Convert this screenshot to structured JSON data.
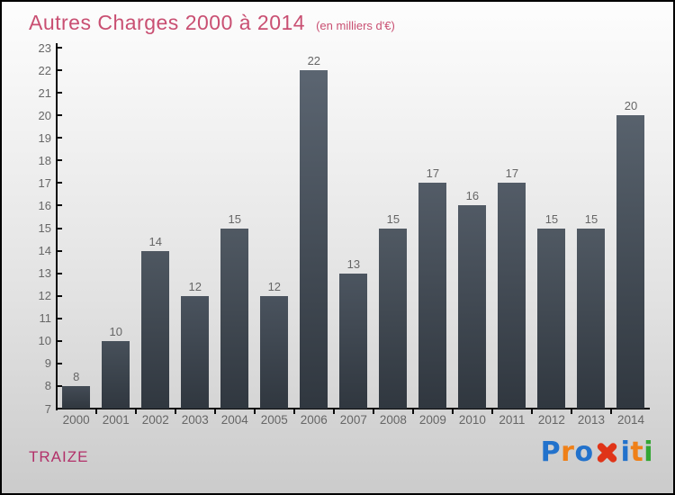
{
  "header": {
    "title": "Autres Charges 2000 à 2014",
    "subtitle": "(en milliers d'€)"
  },
  "chart_data": {
    "type": "bar",
    "title": "Autres Charges 2000 à 2014",
    "subtitle": "(en milliers d'€)",
    "categories": [
      "2000",
      "2001",
      "2002",
      "2003",
      "2004",
      "2005",
      "2006",
      "2007",
      "2008",
      "2009",
      "2010",
      "2011",
      "2012",
      "2013",
      "2014"
    ],
    "values": [
      8,
      10,
      14,
      12,
      15,
      12,
      22,
      13,
      15,
      17,
      16,
      17,
      15,
      15,
      20
    ],
    "xlabel": "",
    "ylabel": "",
    "ylim": [
      7,
      23
    ],
    "ytick_step": 1,
    "yticks": [
      7,
      8,
      9,
      10,
      11,
      12,
      13,
      14,
      15,
      16,
      17,
      18,
      19,
      20,
      21,
      22,
      23
    ],
    "grid": false,
    "legend_position": "none",
    "bar_value_labels_shown": true
  },
  "footer": {
    "company": "TRAIZE",
    "logo": {
      "brand": "Proxiti",
      "letters": [
        {
          "char": "P",
          "color": "#2272cc"
        },
        {
          "char": "r",
          "color": "#ef8018"
        },
        {
          "char": "o",
          "color": "#2272cc"
        },
        {
          "char": "x",
          "color": "#e03418",
          "big": true
        },
        {
          "char": "i",
          "color": "#2272cc"
        },
        {
          "char": "t",
          "color": "#ef8018"
        },
        {
          "char": "i",
          "color": "#33a633"
        }
      ]
    }
  },
  "colors": {
    "title": "#c94f72",
    "company": "#b23069",
    "bar_light": "#5d6773",
    "bar_dark": "#30373f",
    "axis": "#0a0a0a",
    "tick_label": "#666666"
  }
}
